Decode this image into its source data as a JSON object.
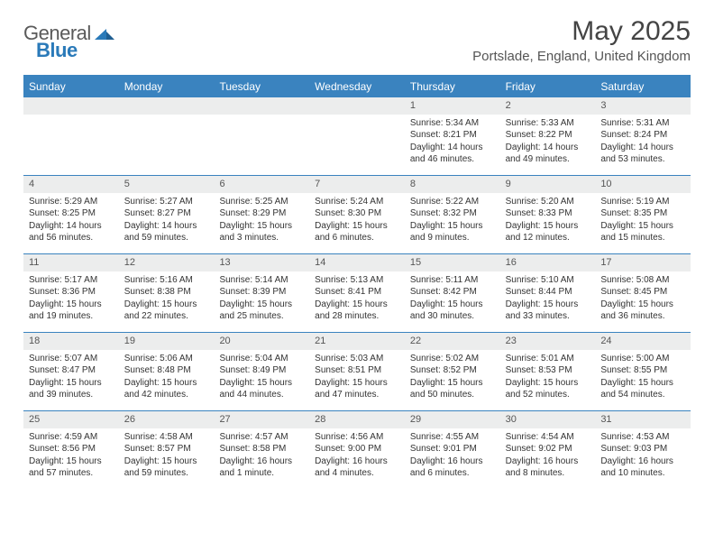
{
  "brand": {
    "text1": "General",
    "text2": "Blue"
  },
  "title": "May 2025",
  "location": "Portslade, England, United Kingdom",
  "colors": {
    "header_bar": "#3a83bf",
    "row_divider": "#3a83bf",
    "daynum_bg": "#eceded",
    "text": "#333333",
    "brand_grey": "#5a5a5a",
    "brand_blue": "#2a7ab9"
  },
  "weekdays": [
    "Sunday",
    "Monday",
    "Tuesday",
    "Wednesday",
    "Thursday",
    "Friday",
    "Saturday"
  ],
  "weeks": [
    [
      null,
      null,
      null,
      null,
      {
        "n": "1",
        "sr": "Sunrise: 5:34 AM",
        "ss": "Sunset: 8:21 PM",
        "dl": "Daylight: 14 hours and 46 minutes."
      },
      {
        "n": "2",
        "sr": "Sunrise: 5:33 AM",
        "ss": "Sunset: 8:22 PM",
        "dl": "Daylight: 14 hours and 49 minutes."
      },
      {
        "n": "3",
        "sr": "Sunrise: 5:31 AM",
        "ss": "Sunset: 8:24 PM",
        "dl": "Daylight: 14 hours and 53 minutes."
      }
    ],
    [
      {
        "n": "4",
        "sr": "Sunrise: 5:29 AM",
        "ss": "Sunset: 8:25 PM",
        "dl": "Daylight: 14 hours and 56 minutes."
      },
      {
        "n": "5",
        "sr": "Sunrise: 5:27 AM",
        "ss": "Sunset: 8:27 PM",
        "dl": "Daylight: 14 hours and 59 minutes."
      },
      {
        "n": "6",
        "sr": "Sunrise: 5:25 AM",
        "ss": "Sunset: 8:29 PM",
        "dl": "Daylight: 15 hours and 3 minutes."
      },
      {
        "n": "7",
        "sr": "Sunrise: 5:24 AM",
        "ss": "Sunset: 8:30 PM",
        "dl": "Daylight: 15 hours and 6 minutes."
      },
      {
        "n": "8",
        "sr": "Sunrise: 5:22 AM",
        "ss": "Sunset: 8:32 PM",
        "dl": "Daylight: 15 hours and 9 minutes."
      },
      {
        "n": "9",
        "sr": "Sunrise: 5:20 AM",
        "ss": "Sunset: 8:33 PM",
        "dl": "Daylight: 15 hours and 12 minutes."
      },
      {
        "n": "10",
        "sr": "Sunrise: 5:19 AM",
        "ss": "Sunset: 8:35 PM",
        "dl": "Daylight: 15 hours and 15 minutes."
      }
    ],
    [
      {
        "n": "11",
        "sr": "Sunrise: 5:17 AM",
        "ss": "Sunset: 8:36 PM",
        "dl": "Daylight: 15 hours and 19 minutes."
      },
      {
        "n": "12",
        "sr": "Sunrise: 5:16 AM",
        "ss": "Sunset: 8:38 PM",
        "dl": "Daylight: 15 hours and 22 minutes."
      },
      {
        "n": "13",
        "sr": "Sunrise: 5:14 AM",
        "ss": "Sunset: 8:39 PM",
        "dl": "Daylight: 15 hours and 25 minutes."
      },
      {
        "n": "14",
        "sr": "Sunrise: 5:13 AM",
        "ss": "Sunset: 8:41 PM",
        "dl": "Daylight: 15 hours and 28 minutes."
      },
      {
        "n": "15",
        "sr": "Sunrise: 5:11 AM",
        "ss": "Sunset: 8:42 PM",
        "dl": "Daylight: 15 hours and 30 minutes."
      },
      {
        "n": "16",
        "sr": "Sunrise: 5:10 AM",
        "ss": "Sunset: 8:44 PM",
        "dl": "Daylight: 15 hours and 33 minutes."
      },
      {
        "n": "17",
        "sr": "Sunrise: 5:08 AM",
        "ss": "Sunset: 8:45 PM",
        "dl": "Daylight: 15 hours and 36 minutes."
      }
    ],
    [
      {
        "n": "18",
        "sr": "Sunrise: 5:07 AM",
        "ss": "Sunset: 8:47 PM",
        "dl": "Daylight: 15 hours and 39 minutes."
      },
      {
        "n": "19",
        "sr": "Sunrise: 5:06 AM",
        "ss": "Sunset: 8:48 PM",
        "dl": "Daylight: 15 hours and 42 minutes."
      },
      {
        "n": "20",
        "sr": "Sunrise: 5:04 AM",
        "ss": "Sunset: 8:49 PM",
        "dl": "Daylight: 15 hours and 44 minutes."
      },
      {
        "n": "21",
        "sr": "Sunrise: 5:03 AM",
        "ss": "Sunset: 8:51 PM",
        "dl": "Daylight: 15 hours and 47 minutes."
      },
      {
        "n": "22",
        "sr": "Sunrise: 5:02 AM",
        "ss": "Sunset: 8:52 PM",
        "dl": "Daylight: 15 hours and 50 minutes."
      },
      {
        "n": "23",
        "sr": "Sunrise: 5:01 AM",
        "ss": "Sunset: 8:53 PM",
        "dl": "Daylight: 15 hours and 52 minutes."
      },
      {
        "n": "24",
        "sr": "Sunrise: 5:00 AM",
        "ss": "Sunset: 8:55 PM",
        "dl": "Daylight: 15 hours and 54 minutes."
      }
    ],
    [
      {
        "n": "25",
        "sr": "Sunrise: 4:59 AM",
        "ss": "Sunset: 8:56 PM",
        "dl": "Daylight: 15 hours and 57 minutes."
      },
      {
        "n": "26",
        "sr": "Sunrise: 4:58 AM",
        "ss": "Sunset: 8:57 PM",
        "dl": "Daylight: 15 hours and 59 minutes."
      },
      {
        "n": "27",
        "sr": "Sunrise: 4:57 AM",
        "ss": "Sunset: 8:58 PM",
        "dl": "Daylight: 16 hours and 1 minute."
      },
      {
        "n": "28",
        "sr": "Sunrise: 4:56 AM",
        "ss": "Sunset: 9:00 PM",
        "dl": "Daylight: 16 hours and 4 minutes."
      },
      {
        "n": "29",
        "sr": "Sunrise: 4:55 AM",
        "ss": "Sunset: 9:01 PM",
        "dl": "Daylight: 16 hours and 6 minutes."
      },
      {
        "n": "30",
        "sr": "Sunrise: 4:54 AM",
        "ss": "Sunset: 9:02 PM",
        "dl": "Daylight: 16 hours and 8 minutes."
      },
      {
        "n": "31",
        "sr": "Sunrise: 4:53 AM",
        "ss": "Sunset: 9:03 PM",
        "dl": "Daylight: 16 hours and 10 minutes."
      }
    ]
  ]
}
